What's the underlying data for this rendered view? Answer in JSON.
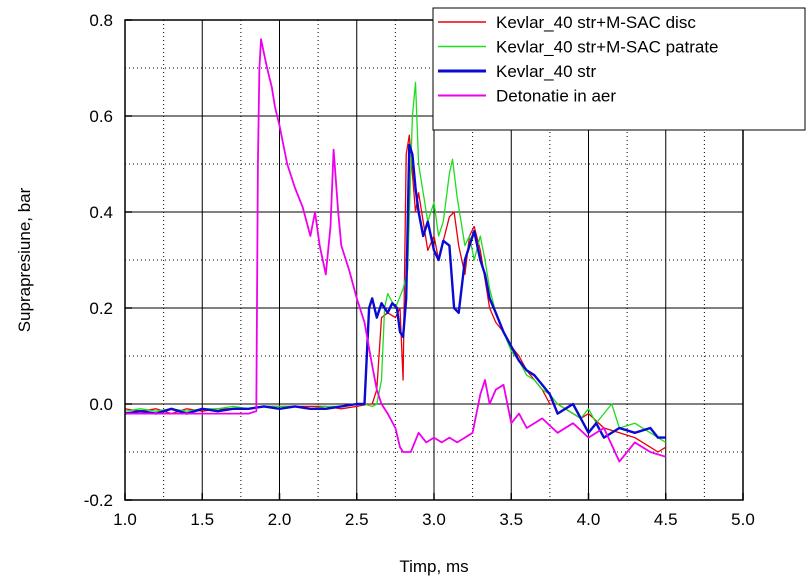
{
  "chart_data": {
    "type": "line",
    "xlabel": "Timp, ms",
    "ylabel": "Suprapresiune, bar",
    "xlim": [
      1.0,
      5.0
    ],
    "ylim": [
      -0.2,
      0.8
    ],
    "xticks": [
      "1.0",
      "1.5",
      "2.0",
      "2.5",
      "3.0",
      "3.5",
      "4.0",
      "4.5",
      "5.0"
    ],
    "yticks": [
      "-0.2",
      "0.0",
      "0.2",
      "0.4",
      "0.6",
      "0.8"
    ],
    "grid": "major solid, minor dotted",
    "legend_position": "top-right",
    "series": [
      {
        "name": "Kevlar_40 str+M-SAC disc",
        "color": "#e8000b",
        "points": [
          [
            1.0,
            -0.01
          ],
          [
            1.1,
            -0.015
          ],
          [
            1.2,
            -0.01
          ],
          [
            1.3,
            -0.02
          ],
          [
            1.4,
            -0.01
          ],
          [
            1.5,
            -0.015
          ],
          [
            1.6,
            -0.01
          ],
          [
            1.7,
            -0.01
          ],
          [
            1.8,
            -0.01
          ],
          [
            1.9,
            -0.005
          ],
          [
            2.0,
            -0.005
          ],
          [
            2.1,
            -0.005
          ],
          [
            2.2,
            -0.005
          ],
          [
            2.3,
            -0.005
          ],
          [
            2.4,
            -0.01
          ],
          [
            2.5,
            -0.005
          ],
          [
            2.58,
            0.0
          ],
          [
            2.6,
            0.0
          ],
          [
            2.63,
            0.03
          ],
          [
            2.66,
            0.18
          ],
          [
            2.7,
            0.19
          ],
          [
            2.75,
            0.18
          ],
          [
            2.78,
            0.2
          ],
          [
            2.8,
            0.05
          ],
          [
            2.82,
            0.52
          ],
          [
            2.84,
            0.56
          ],
          [
            2.86,
            0.48
          ],
          [
            2.88,
            0.4
          ],
          [
            2.9,
            0.44
          ],
          [
            2.93,
            0.38
          ],
          [
            2.96,
            0.32
          ],
          [
            3.0,
            0.35
          ],
          [
            3.03,
            0.3
          ],
          [
            3.06,
            0.34
          ],
          [
            3.1,
            0.39
          ],
          [
            3.13,
            0.4
          ],
          [
            3.16,
            0.33
          ],
          [
            3.2,
            0.27
          ],
          [
            3.23,
            0.35
          ],
          [
            3.26,
            0.37
          ],
          [
            3.3,
            0.32
          ],
          [
            3.33,
            0.26
          ],
          [
            3.36,
            0.2
          ],
          [
            3.4,
            0.17
          ],
          [
            3.45,
            0.15
          ],
          [
            3.5,
            0.12
          ],
          [
            3.55,
            0.1
          ],
          [
            3.6,
            0.07
          ],
          [
            3.65,
            0.05
          ],
          [
            3.7,
            0.03
          ],
          [
            3.75,
            0.0
          ],
          [
            3.8,
            0.0
          ],
          [
            3.85,
            -0.01
          ],
          [
            3.9,
            -0.02
          ],
          [
            3.95,
            -0.03
          ],
          [
            4.0,
            -0.02
          ],
          [
            4.1,
            -0.05
          ],
          [
            4.2,
            -0.06
          ],
          [
            4.3,
            -0.07
          ],
          [
            4.4,
            -0.09
          ],
          [
            4.45,
            -0.1
          ],
          [
            4.5,
            -0.09
          ]
        ]
      },
      {
        "name": "Kevlar_40 str+M-SAC patrate",
        "color": "#1fdc1f",
        "points": [
          [
            1.0,
            -0.015
          ],
          [
            1.1,
            -0.01
          ],
          [
            1.2,
            -0.015
          ],
          [
            1.3,
            -0.01
          ],
          [
            1.4,
            -0.015
          ],
          [
            1.5,
            -0.01
          ],
          [
            1.6,
            -0.01
          ],
          [
            1.7,
            -0.005
          ],
          [
            1.8,
            -0.01
          ],
          [
            1.9,
            -0.005
          ],
          [
            2.0,
            -0.005
          ],
          [
            2.1,
            -0.005
          ],
          [
            2.2,
            -0.01
          ],
          [
            2.3,
            -0.005
          ],
          [
            2.4,
            -0.005
          ],
          [
            2.5,
            0.0
          ],
          [
            2.55,
            0.0
          ],
          [
            2.6,
            -0.005
          ],
          [
            2.63,
            0.0
          ],
          [
            2.66,
            0.05
          ],
          [
            2.68,
            0.2
          ],
          [
            2.7,
            0.23
          ],
          [
            2.75,
            0.2
          ],
          [
            2.8,
            0.24
          ],
          [
            2.83,
            0.28
          ],
          [
            2.86,
            0.6
          ],
          [
            2.88,
            0.67
          ],
          [
            2.9,
            0.5
          ],
          [
            2.93,
            0.44
          ],
          [
            2.96,
            0.38
          ],
          [
            3.0,
            0.42
          ],
          [
            3.03,
            0.35
          ],
          [
            3.06,
            0.38
          ],
          [
            3.1,
            0.48
          ],
          [
            3.12,
            0.51
          ],
          [
            3.15,
            0.43
          ],
          [
            3.2,
            0.33
          ],
          [
            3.23,
            0.35
          ],
          [
            3.26,
            0.3
          ],
          [
            3.3,
            0.35
          ],
          [
            3.33,
            0.3
          ],
          [
            3.36,
            0.24
          ],
          [
            3.4,
            0.19
          ],
          [
            3.45,
            0.15
          ],
          [
            3.5,
            0.11
          ],
          [
            3.55,
            0.09
          ],
          [
            3.6,
            0.06
          ],
          [
            3.65,
            0.05
          ],
          [
            3.7,
            0.03
          ],
          [
            3.75,
            0.02
          ],
          [
            3.8,
            0.0
          ],
          [
            3.85,
            -0.01
          ],
          [
            3.9,
            -0.02
          ],
          [
            3.95,
            -0.03
          ],
          [
            4.0,
            -0.01
          ],
          [
            4.05,
            -0.04
          ],
          [
            4.1,
            -0.02
          ],
          [
            4.15,
            0.0
          ],
          [
            4.2,
            -0.05
          ],
          [
            4.3,
            -0.04
          ],
          [
            4.4,
            -0.06
          ],
          [
            4.5,
            -0.08
          ]
        ]
      },
      {
        "name": "Kevlar_40 str",
        "color": "#0a0ad2",
        "points": [
          [
            1.0,
            -0.02
          ],
          [
            1.1,
            -0.015
          ],
          [
            1.2,
            -0.02
          ],
          [
            1.3,
            -0.01
          ],
          [
            1.4,
            -0.02
          ],
          [
            1.5,
            -0.01
          ],
          [
            1.6,
            -0.015
          ],
          [
            1.7,
            -0.01
          ],
          [
            1.8,
            -0.01
          ],
          [
            1.9,
            -0.005
          ],
          [
            2.0,
            -0.01
          ],
          [
            2.1,
            -0.005
          ],
          [
            2.2,
            -0.01
          ],
          [
            2.3,
            -0.01
          ],
          [
            2.4,
            -0.005
          ],
          [
            2.5,
            0.0
          ],
          [
            2.55,
            0.0
          ],
          [
            2.58,
            0.2
          ],
          [
            2.6,
            0.22
          ],
          [
            2.63,
            0.18
          ],
          [
            2.66,
            0.21
          ],
          [
            2.7,
            0.19
          ],
          [
            2.73,
            0.21
          ],
          [
            2.76,
            0.2
          ],
          [
            2.78,
            0.15
          ],
          [
            2.8,
            0.14
          ],
          [
            2.82,
            0.22
          ],
          [
            2.84,
            0.54
          ],
          [
            2.86,
            0.52
          ],
          [
            2.88,
            0.45
          ],
          [
            2.9,
            0.4
          ],
          [
            2.93,
            0.35
          ],
          [
            2.96,
            0.38
          ],
          [
            3.0,
            0.32
          ],
          [
            3.03,
            0.3
          ],
          [
            3.06,
            0.34
          ],
          [
            3.1,
            0.33
          ],
          [
            3.13,
            0.2
          ],
          [
            3.16,
            0.19
          ],
          [
            3.2,
            0.3
          ],
          [
            3.23,
            0.33
          ],
          [
            3.26,
            0.36
          ],
          [
            3.3,
            0.3
          ],
          [
            3.33,
            0.27
          ],
          [
            3.36,
            0.22
          ],
          [
            3.4,
            0.19
          ],
          [
            3.45,
            0.15
          ],
          [
            3.5,
            0.12
          ],
          [
            3.55,
            0.09
          ],
          [
            3.6,
            0.07
          ],
          [
            3.65,
            0.06
          ],
          [
            3.7,
            0.04
          ],
          [
            3.75,
            0.02
          ],
          [
            3.8,
            -0.02
          ],
          [
            3.85,
            -0.01
          ],
          [
            3.9,
            0.0
          ],
          [
            3.95,
            -0.03
          ],
          [
            4.0,
            -0.06
          ],
          [
            4.05,
            -0.04
          ],
          [
            4.1,
            -0.07
          ],
          [
            4.2,
            -0.05
          ],
          [
            4.3,
            -0.06
          ],
          [
            4.4,
            -0.05
          ],
          [
            4.45,
            -0.07
          ],
          [
            4.5,
            -0.07
          ]
        ]
      },
      {
        "name": "Detonatie in aer",
        "color": "#ee00ee",
        "points": [
          [
            1.0,
            -0.02
          ],
          [
            1.2,
            -0.02
          ],
          [
            1.4,
            -0.02
          ],
          [
            1.6,
            -0.02
          ],
          [
            1.8,
            -0.02
          ],
          [
            1.85,
            -0.015
          ],
          [
            1.86,
            0.5
          ],
          [
            1.87,
            0.7
          ],
          [
            1.88,
            0.76
          ],
          [
            1.9,
            0.73
          ],
          [
            1.92,
            0.7
          ],
          [
            1.95,
            0.66
          ],
          [
            1.97,
            0.62
          ],
          [
            2.0,
            0.58
          ],
          [
            2.05,
            0.5
          ],
          [
            2.1,
            0.45
          ],
          [
            2.15,
            0.41
          ],
          [
            2.2,
            0.35
          ],
          [
            2.23,
            0.4
          ],
          [
            2.26,
            0.33
          ],
          [
            2.3,
            0.27
          ],
          [
            2.33,
            0.37
          ],
          [
            2.35,
            0.53
          ],
          [
            2.38,
            0.4
          ],
          [
            2.4,
            0.33
          ],
          [
            2.45,
            0.28
          ],
          [
            2.5,
            0.22
          ],
          [
            2.55,
            0.17
          ],
          [
            2.6,
            0.08
          ],
          [
            2.63,
            0.03
          ],
          [
            2.66,
            0.0
          ],
          [
            2.7,
            -0.02
          ],
          [
            2.75,
            -0.05
          ],
          [
            2.78,
            -0.09
          ],
          [
            2.8,
            -0.1
          ],
          [
            2.85,
            -0.1
          ],
          [
            2.9,
            -0.06
          ],
          [
            2.95,
            -0.08
          ],
          [
            3.0,
            -0.07
          ],
          [
            3.05,
            -0.08
          ],
          [
            3.1,
            -0.07
          ],
          [
            3.15,
            -0.08
          ],
          [
            3.2,
            -0.07
          ],
          [
            3.25,
            -0.06
          ],
          [
            3.3,
            0.02
          ],
          [
            3.33,
            0.05
          ],
          [
            3.36,
            0.0
          ],
          [
            3.4,
            0.03
          ],
          [
            3.45,
            0.04
          ],
          [
            3.5,
            -0.04
          ],
          [
            3.55,
            -0.02
          ],
          [
            3.6,
            -0.05
          ],
          [
            3.7,
            -0.03
          ],
          [
            3.8,
            -0.06
          ],
          [
            3.9,
            -0.04
          ],
          [
            4.0,
            -0.07
          ],
          [
            4.1,
            -0.05
          ],
          [
            4.2,
            -0.12
          ],
          [
            4.3,
            -0.08
          ],
          [
            4.4,
            -0.1
          ],
          [
            4.5,
            -0.11
          ]
        ]
      }
    ]
  }
}
